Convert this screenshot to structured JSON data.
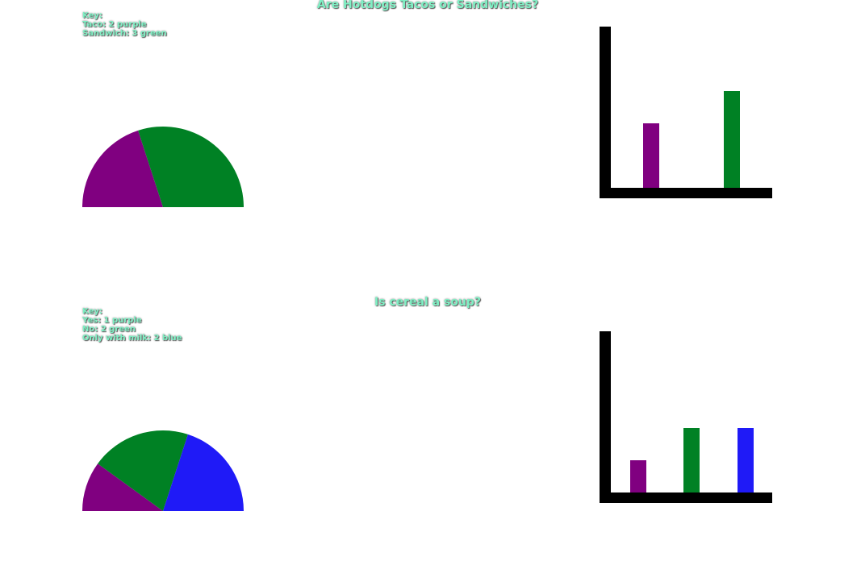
{
  "chart_data": [
    {
      "type": "pie",
      "title": "Are Hotdogs Tacos or Sandwiches?",
      "key_heading": "Key:",
      "categories": [
        "Taco",
        "Sandwich"
      ],
      "values": [
        2,
        3
      ],
      "colors": [
        "purple",
        "green"
      ],
      "color_hex": [
        "#800080",
        "#008124"
      ],
      "key_lines": [
        "Key:",
        "Taco: 2 purple",
        "Sandwich: 3 green"
      ],
      "bar": {
        "type": "bar",
        "axis_color": "#000000",
        "ylim": [
          0,
          5
        ]
      }
    },
    {
      "type": "pie",
      "title": "Is cereal a soup?",
      "key_heading": "Key:",
      "categories": [
        "Yes",
        "No",
        "Only with milk"
      ],
      "values": [
        1,
        2,
        2
      ],
      "colors": [
        "purple",
        "green",
        "blue"
      ],
      "color_hex": [
        "#800080",
        "#008124",
        "#1f1af7"
      ],
      "key_lines": [
        "Key:",
        "Yes: 1 purple",
        "No: 2 green",
        "Only with milk: 2 blue"
      ],
      "bar": {
        "type": "bar",
        "axis_color": "#000000",
        "ylim": [
          0,
          5
        ]
      }
    }
  ]
}
